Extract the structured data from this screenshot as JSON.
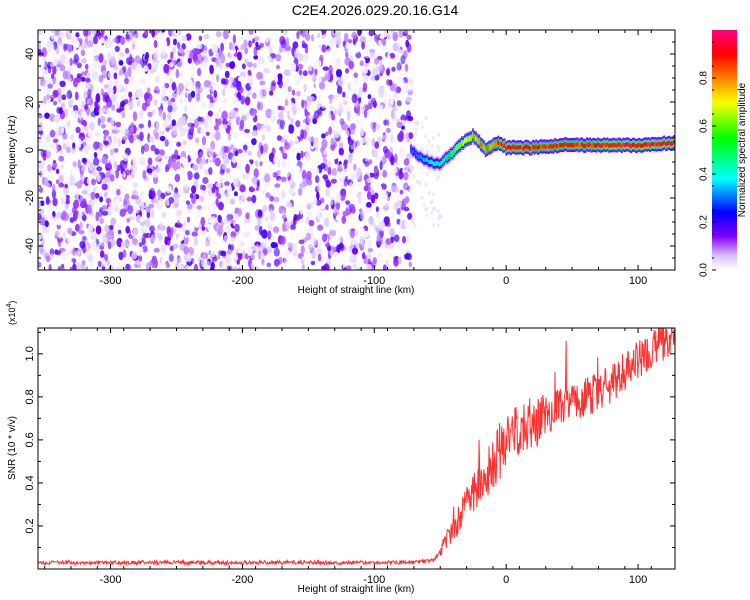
{
  "figure": {
    "title": "C2E4.2026.029.20.16.G14"
  },
  "chart_data": [
    {
      "type": "heatmap",
      "title": "C2E4.2026.029.20.16.G14",
      "xlabel": "Height of straight line (km)",
      "ylabel": "Frequency (Hz)",
      "xlim": [
        -355,
        128
      ],
      "ylim": [
        -50,
        50
      ],
      "x_ticks": [
        -300,
        -200,
        -100,
        0,
        100
      ],
      "y_ticks": [
        -40,
        -20,
        0,
        20,
        40
      ],
      "colorbar": {
        "label": "Normalized spectral amplitude",
        "range": [
          0.0,
          1.0
        ],
        "ticks": [
          0.0,
          0.2,
          0.4,
          0.6,
          0.8
        ],
        "colormap": [
          "#ffffff",
          "#c8a8ff",
          "#8000ff",
          "#0000ff",
          "#00ffff",
          "#00ff00",
          "#ffff00",
          "#ff8000",
          "#ff0000",
          "#ff0080"
        ]
      },
      "noise_region": {
        "x_range": [
          -355,
          -72
        ],
        "level": "low (0.0–0.2)"
      },
      "signal_trace": {
        "x": [
          -72,
          -65,
          -58,
          -50,
          -45,
          -40,
          -35,
          -30,
          -25,
          -20,
          -15,
          -10,
          -5,
          0,
          20,
          40,
          60,
          80,
          100,
          128
        ],
        "frequency": [
          0,
          -3,
          -5,
          -6,
          -3,
          -1,
          2,
          4,
          6,
          3,
          0,
          2,
          3,
          1,
          1,
          2,
          2,
          2,
          2,
          3
        ],
        "amplitude": [
          0.3,
          0.35,
          0.4,
          0.45,
          0.55,
          0.6,
          0.7,
          0.75,
          0.8,
          0.85,
          0.85,
          0.9,
          0.95,
          1.0,
          0.95,
          0.95,
          0.95,
          1.0,
          1.0,
          1.0
        ]
      }
    },
    {
      "type": "line",
      "xlabel": "Height of straight line (km)",
      "ylabel": "SNR (10 * v/v)",
      "y_multiplier": "(x10^4)",
      "y_multiplier_base": "(x10",
      "y_multiplier_exp": "4",
      "y_multiplier_close": ")",
      "xlim": [
        -355,
        128
      ],
      "ylim": [
        0,
        1.12
      ],
      "x_ticks": [
        -300,
        -200,
        -100,
        0,
        100
      ],
      "y_ticks": [
        0.2,
        0.4,
        0.6,
        0.8,
        1.0
      ],
      "y_tick_labels": [
        "0.2",
        "0.4",
        "0.6",
        "0.8",
        "1.0"
      ],
      "color": "#ff3030",
      "series": [
        {
          "x": [
            -355,
            -300,
            -250,
            -200,
            -150,
            -100,
            -70,
            -55,
            -50,
            -45,
            -40,
            -35,
            -30,
            -25,
            -20,
            -15,
            -10,
            -5,
            0,
            10,
            20,
            30,
            40,
            50,
            60,
            70,
            80,
            90,
            100,
            110,
            120,
            128
          ],
          "values": [
            0.03,
            0.03,
            0.03,
            0.03,
            0.03,
            0.03,
            0.03,
            0.04,
            0.08,
            0.14,
            0.18,
            0.24,
            0.3,
            0.35,
            0.4,
            0.45,
            0.48,
            0.55,
            0.6,
            0.64,
            0.68,
            0.72,
            0.75,
            0.78,
            0.8,
            0.82,
            0.86,
            0.92,
            0.97,
            1.02,
            1.06,
            1.1
          ]
        }
      ]
    }
  ]
}
